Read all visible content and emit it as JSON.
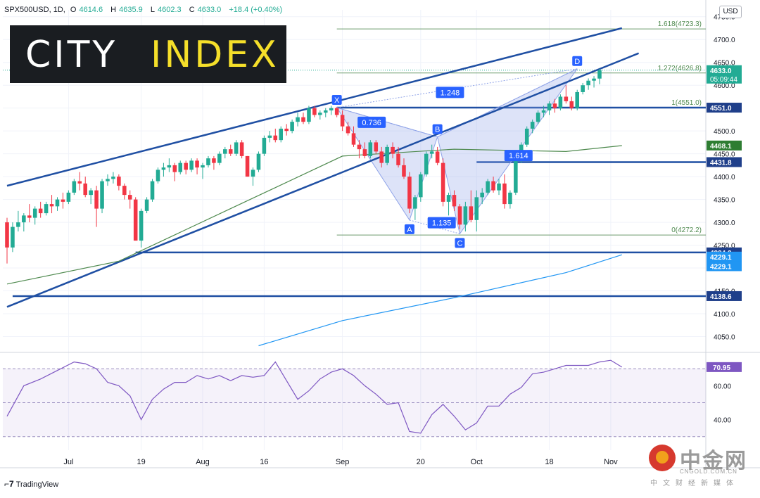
{
  "header": {
    "symbol": "SPX500USD, 1D,",
    "open_label": "O",
    "open": "4614.6",
    "high_label": "H",
    "high": "4635.9",
    "low_label": "L",
    "low": "4602.3",
    "close_label": "C",
    "close": "4633.0",
    "change": "+18.4 (+0.40%)"
  },
  "logo": {
    "word1": "CITY",
    "word2": "INDEX",
    "text_color": "#ffffff",
    "accent_color": "#f5df2a"
  },
  "currency": "USD",
  "tradingview": "TradingView",
  "watermark": {
    "name": "中金网",
    "domain": "CNGOLD.COM.CN",
    "tagline": "中文财经新媒体"
  },
  "colors": {
    "up": "#22ab94",
    "down": "#f23645",
    "channel": "#1f4fa3",
    "ma_green": "#4f8a4f",
    "ma_blue": "#2196f3",
    "rsi": "#7e57c2",
    "pattern": "#8fa3e8"
  },
  "chart_data": [
    {
      "type": "candlestick",
      "symbol": "SPX500USD",
      "interval": "1D",
      "ylim": [
        4020,
        4765
      ],
      "y_ticks": [
        4050,
        4100,
        4150,
        4200,
        4250,
        4300,
        4350,
        4400,
        4450,
        4500,
        4550,
        4600,
        4650,
        4700,
        4750
      ],
      "x_ticks": [
        {
          "label": "Jul",
          "index": 11
        },
        {
          "label": "19",
          "index": 24
        },
        {
          "label": "Aug",
          "index": 35
        },
        {
          "label": "16",
          "index": 46
        },
        {
          "label": "Sep",
          "index": 60
        },
        {
          "label": "20",
          "index": 74
        },
        {
          "label": "Oct",
          "index": 84
        },
        {
          "label": "18",
          "index": 97
        },
        {
          "label": "Nov",
          "index": 108
        }
      ],
      "candles": [
        [
          4300,
          4310,
          4210,
          4245
        ],
        [
          4245,
          4300,
          4235,
          4290
        ],
        [
          4290,
          4325,
          4280,
          4300
        ],
        [
          4300,
          4320,
          4280,
          4315
        ],
        [
          4315,
          4340,
          4300,
          4310
        ],
        [
          4310,
          4335,
          4295,
          4330
        ],
        [
          4330,
          4345,
          4310,
          4320
        ],
        [
          4320,
          4345,
          4315,
          4340
        ],
        [
          4340,
          4360,
          4320,
          4335
        ],
        [
          4335,
          4355,
          4325,
          4350
        ],
        [
          4350,
          4365,
          4330,
          4345
        ],
        [
          4345,
          4370,
          4340,
          4365
        ],
        [
          4365,
          4395,
          4360,
          4390
        ],
        [
          4390,
          4410,
          4370,
          4385
        ],
        [
          4385,
          4400,
          4355,
          4360
        ],
        [
          4360,
          4375,
          4340,
          4370
        ],
        [
          4370,
          4380,
          4290,
          4330
        ],
        [
          4330,
          4395,
          4320,
          4390
        ],
        [
          4390,
          4405,
          4380,
          4395
        ],
        [
          4395,
          4410,
          4385,
          4400
        ],
        [
          4400,
          4405,
          4370,
          4380
        ],
        [
          4380,
          4385,
          4350,
          4360
        ],
        [
          4360,
          4370,
          4330,
          4350
        ],
        [
          4350,
          4355,
          4260,
          4260
        ],
        [
          4260,
          4330,
          4245,
          4325
        ],
        [
          4325,
          4355,
          4320,
          4350
        ],
        [
          4350,
          4395,
          4345,
          4390
        ],
        [
          4390,
          4420,
          4385,
          4415
        ],
        [
          4415,
          4430,
          4400,
          4420
        ],
        [
          4420,
          4440,
          4410,
          4425
        ],
        [
          4425,
          4430,
          4390,
          4410
        ],
        [
          4410,
          4435,
          4405,
          4430
        ],
        [
          4430,
          4435,
          4405,
          4415
        ],
        [
          4415,
          4440,
          4410,
          4435
        ],
        [
          4435,
          4440,
          4405,
          4420
        ],
        [
          4420,
          4430,
          4395,
          4425
        ],
        [
          4425,
          4445,
          4420,
          4440
        ],
        [
          4440,
          4445,
          4415,
          4430
        ],
        [
          4430,
          4455,
          4425,
          4450
        ],
        [
          4450,
          4465,
          4440,
          4460
        ],
        [
          4460,
          4470,
          4445,
          4450
        ],
        [
          4450,
          4480,
          4445,
          4475
        ],
        [
          4475,
          4480,
          4440,
          4445
        ],
        [
          4445,
          4445,
          4400,
          4400
        ],
        [
          4400,
          4420,
          4380,
          4415
        ],
        [
          4415,
          4455,
          4410,
          4450
        ],
        [
          4450,
          4490,
          4445,
          4485
        ],
        [
          4485,
          4500,
          4475,
          4490
        ],
        [
          4490,
          4505,
          4475,
          4480
        ],
        [
          4480,
          4510,
          4475,
          4505
        ],
        [
          4505,
          4515,
          4490,
          4500
        ],
        [
          4500,
          4525,
          4495,
          4520
        ],
        [
          4520,
          4540,
          4510,
          4530
        ],
        [
          4530,
          4540,
          4515,
          4520
        ],
        [
          4520,
          4555,
          4515,
          4550
        ],
        [
          4550,
          4555,
          4530,
          4535
        ],
        [
          4535,
          4545,
          4525,
          4540
        ],
        [
          4540,
          4550,
          4530,
          4545
        ],
        [
          4545,
          4555,
          4535,
          4550
        ],
        [
          4550,
          4552,
          4530,
          4535
        ],
        [
          4535,
          4545,
          4500,
          4510
        ],
        [
          4510,
          4520,
          4490,
          4495
        ],
        [
          4495,
          4510,
          4465,
          4470
        ],
        [
          4470,
          4480,
          4440,
          4460
        ],
        [
          4460,
          4475,
          4440,
          4445
        ],
        [
          4445,
          4480,
          4440,
          4475
        ],
        [
          4475,
          4480,
          4450,
          4455
        ],
        [
          4455,
          4465,
          4420,
          4430
        ],
        [
          4430,
          4470,
          4425,
          4465
        ],
        [
          4465,
          4475,
          4440,
          4450
        ],
        [
          4450,
          4465,
          4420,
          4425
        ],
        [
          4425,
          4440,
          4395,
          4400
        ],
        [
          4400,
          4410,
          4320,
          4330
        ],
        [
          4330,
          4360,
          4305,
          4355
        ],
        [
          4355,
          4410,
          4345,
          4405
        ],
        [
          4405,
          4455,
          4400,
          4450
        ],
        [
          4450,
          4470,
          4440,
          4455
        ],
        [
          4455,
          4465,
          4425,
          4430
        ],
        [
          4430,
          4440,
          4335,
          4345
        ],
        [
          4345,
          4365,
          4315,
          4360
        ],
        [
          4360,
          4370,
          4325,
          4335
        ],
        [
          4335,
          4340,
          4285,
          4295
        ],
        [
          4295,
          4345,
          4280,
          4335
        ],
        [
          4335,
          4370,
          4300,
          4305
        ],
        [
          4305,
          4370,
          4280,
          4355
        ],
        [
          4355,
          4375,
          4340,
          4365
        ],
        [
          4365,
          4395,
          4360,
          4390
        ],
        [
          4390,
          4400,
          4365,
          4370
        ],
        [
          4370,
          4395,
          4360,
          4385
        ],
        [
          4385,
          4405,
          4330,
          4340
        ],
        [
          4340,
          4370,
          4330,
          4365
        ],
        [
          4365,
          4440,
          4360,
          4435
        ],
        [
          4435,
          4475,
          4430,
          4470
        ],
        [
          4470,
          4510,
          4465,
          4505
        ],
        [
          4505,
          4525,
          4495,
          4520
        ],
        [
          4520,
          4545,
          4515,
          4540
        ],
        [
          4540,
          4555,
          4530,
          4545
        ],
        [
          4545,
          4565,
          4535,
          4560
        ],
        [
          4560,
          4570,
          4540,
          4550
        ],
        [
          4550,
          4580,
          4545,
          4575
        ],
        [
          4575,
          4600,
          4560,
          4565
        ],
        [
          4565,
          4575,
          4545,
          4550
        ],
        [
          4550,
          4590,
          4545,
          4585
        ],
        [
          4585,
          4605,
          4580,
          4600
        ],
        [
          4600,
          4615,
          4590,
          4610
        ],
        [
          4610,
          4620,
          4595,
          4614.6
        ],
        [
          4614.6,
          4635.9,
          4602.3,
          4633.0
        ]
      ],
      "harmonic_pattern": {
        "points": [
          {
            "label": "X",
            "index": 59,
            "price": 4551
          },
          {
            "label": "A",
            "index": 72,
            "price": 4305
          },
          {
            "label": "B",
            "index": 77,
            "price": 4487
          },
          {
            "label": "C",
            "index": 81,
            "price": 4275
          },
          {
            "label": "D",
            "index": 102,
            "price": 4636
          }
        ],
        "ratios": [
          "0.736",
          "1.135",
          "1.614",
          "1.248"
        ]
      },
      "fibonacci": [
        {
          "label": "1.618(4723.3)",
          "price": 4723.3
        },
        {
          "label": "1.272(4626.8)",
          "price": 4626.8
        },
        {
          "label": "1(4551.0)",
          "price": 4551.0
        },
        {
          "label": "0(4272.2)",
          "price": 4272.2
        }
      ],
      "horizontal_levels": [
        {
          "label": "4551.0",
          "price": 4551.0
        },
        {
          "label": "4431.8",
          "price": 4431.8
        },
        {
          "label": "4234.2",
          "price": 4234.2
        },
        {
          "label": "4138.6",
          "price": 4138.6
        }
      ],
      "price_tags": [
        {
          "label": "4633.0",
          "sub": "05:09:44",
          "price": 4633.0,
          "color": "#22ab94"
        },
        {
          "label": "4468.1",
          "price": 4468.1,
          "color": "#2e7d32"
        },
        {
          "label": "4229.1",
          "price": 4225.0,
          "color": "#2196f3"
        },
        {
          "label": "4229.1",
          "price": 4204.0,
          "color": "#2196f3"
        }
      ],
      "moving_averages": [
        {
          "color": "#4f8a4f",
          "points": [
            [
              0,
              4165
            ],
            [
              20,
              4215
            ],
            [
              40,
              4330
            ],
            [
              60,
              4445
            ],
            [
              80,
              4460
            ],
            [
              100,
              4455
            ],
            [
              110,
              4468
            ]
          ]
        },
        {
          "color": "#2196f3",
          "points": [
            [
              45,
              4030
            ],
            [
              60,
              4085
            ],
            [
              80,
              4135
            ],
            [
              100,
              4190
            ],
            [
              110,
              4229
            ]
          ]
        }
      ],
      "channel_lines": [
        {
          "from": [
            0,
            4380
          ],
          "to": [
            110,
            4725
          ]
        },
        {
          "from": [
            0,
            4115
          ],
          "to": [
            113,
            4670
          ]
        }
      ]
    },
    {
      "type": "line",
      "name": "RSI",
      "ylim": [
        22,
        78
      ],
      "y_ticks": [
        40,
        60
      ],
      "last_value": "70.95",
      "guides": [
        30,
        50,
        70
      ],
      "values": [
        [
          0,
          42
        ],
        [
          3,
          60
        ],
        [
          6,
          64
        ],
        [
          9,
          69
        ],
        [
          12,
          74
        ],
        [
          14,
          73
        ],
        [
          16,
          70
        ],
        [
          18,
          62
        ],
        [
          20,
          60
        ],
        [
          22,
          54
        ],
        [
          24,
          40
        ],
        [
          26,
          52
        ],
        [
          28,
          58
        ],
        [
          30,
          62
        ],
        [
          32,
          62
        ],
        [
          34,
          66
        ],
        [
          36,
          64
        ],
        [
          38,
          66
        ],
        [
          40,
          63
        ],
        [
          42,
          66
        ],
        [
          44,
          65
        ],
        [
          46,
          66
        ],
        [
          48,
          74
        ],
        [
          50,
          63
        ],
        [
          52,
          52
        ],
        [
          54,
          57
        ],
        [
          56,
          64
        ],
        [
          58,
          68
        ],
        [
          60,
          70
        ],
        [
          62,
          66
        ],
        [
          64,
          60
        ],
        [
          66,
          55
        ],
        [
          68,
          49
        ],
        [
          70,
          50
        ],
        [
          72,
          33
        ],
        [
          74,
          32
        ],
        [
          76,
          43
        ],
        [
          78,
          49
        ],
        [
          80,
          42
        ],
        [
          82,
          34
        ],
        [
          84,
          38
        ],
        [
          86,
          48
        ],
        [
          88,
          48
        ],
        [
          90,
          55
        ],
        [
          92,
          59
        ],
        [
          94,
          67
        ],
        [
          96,
          68
        ],
        [
          98,
          70
        ],
        [
          100,
          72
        ],
        [
          102,
          72
        ],
        [
          104,
          72
        ],
        [
          106,
          74
        ],
        [
          108,
          75
        ],
        [
          110,
          71
        ]
      ]
    }
  ]
}
